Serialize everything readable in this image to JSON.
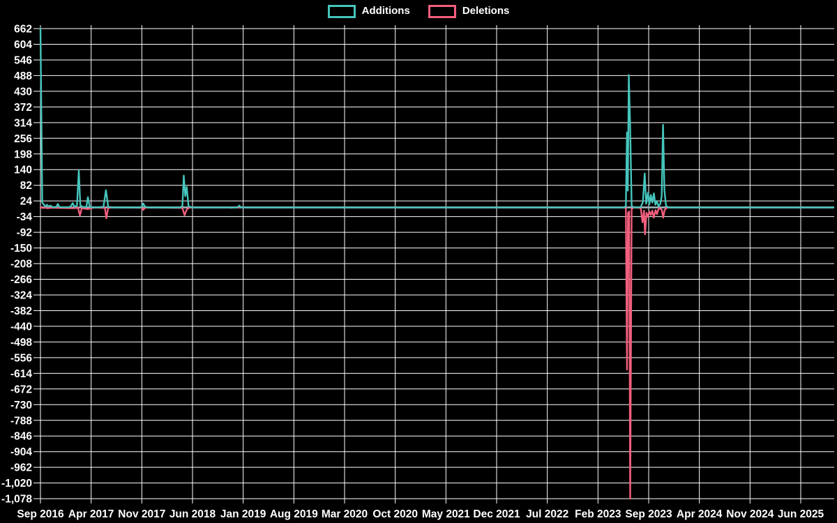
{
  "legend": {
    "items": [
      {
        "label": "Additions",
        "color": "#45c5bc"
      },
      {
        "label": "Deletions",
        "color": "#f25f7d"
      }
    ]
  },
  "chart_data": {
    "type": "line",
    "title": "",
    "xlabel": "",
    "ylabel": "",
    "grid": true,
    "legend_position": "top-center",
    "background_color": "#000000",
    "grid_color": "#ffffff",
    "text_color": "#ffffff",
    "zero_baseline_color": "#9eb6be",
    "y_axis": {
      "min": -1078,
      "max": 662,
      "step": 58,
      "ticks": [
        662,
        604,
        546,
        488,
        430,
        372,
        314,
        256,
        198,
        140,
        82,
        24,
        -34,
        -92,
        -150,
        -208,
        -266,
        -324,
        -382,
        -440,
        -498,
        -556,
        -614,
        -672,
        -730,
        -788,
        -846,
        -904,
        -962,
        "-1,020",
        "-1,078"
      ],
      "tick_values": [
        662,
        604,
        546,
        488,
        430,
        372,
        314,
        256,
        198,
        140,
        82,
        24,
        -34,
        -92,
        -150,
        -208,
        -266,
        -324,
        -382,
        -440,
        -498,
        -556,
        -614,
        -672,
        -730,
        -788,
        -846,
        -904,
        -962,
        -1020,
        -1078
      ]
    },
    "x_axis": {
      "labels": [
        "Sep 2016",
        "Apr 2017",
        "Nov 2017",
        "Jun 2018",
        "Jan 2019",
        "Aug 2019",
        "Mar 2020",
        "Oct 2020",
        "May 2021",
        "Dec 2021",
        "Jul 2022",
        "Feb 2023",
        "Sep 2023",
        "Apr 2024",
        "Nov 2024",
        "Jun 2025"
      ],
      "months_between_labels": 7,
      "x_unit": "months since Sep 2016"
    },
    "series": [
      {
        "name": "Additions",
        "color": "#45c5bc",
        "points": [
          [
            0,
            662
          ],
          [
            0.25,
            18
          ],
          [
            0.7,
            3
          ],
          [
            0.9,
            10
          ],
          [
            1.15,
            3
          ],
          [
            1.4,
            7
          ],
          [
            1.7,
            1
          ],
          [
            2.2,
            2
          ],
          [
            2.4,
            13
          ],
          [
            2.65,
            1
          ],
          [
            4.0,
            1
          ],
          [
            4.2,
            5
          ],
          [
            4.45,
            16
          ],
          [
            4.7,
            2
          ],
          [
            5.05,
            8
          ],
          [
            5.3,
            138
          ],
          [
            5.5,
            8
          ],
          [
            5.75,
            3
          ],
          [
            6.1,
            1
          ],
          [
            6.35,
            3
          ],
          [
            6.55,
            38
          ],
          [
            6.8,
            2
          ],
          [
            7.5,
            0
          ],
          [
            8.7,
            2
          ],
          [
            9.05,
            64
          ],
          [
            9.35,
            2
          ],
          [
            10,
            0
          ],
          [
            13.8,
            0
          ],
          [
            14.0,
            3
          ],
          [
            14.2,
            15
          ],
          [
            14.45,
            2
          ],
          [
            15,
            0
          ],
          [
            19.3,
            0
          ],
          [
            19.6,
            5
          ],
          [
            19.8,
            118
          ],
          [
            20.0,
            42
          ],
          [
            20.2,
            76
          ],
          [
            20.45,
            4
          ],
          [
            21,
            0
          ],
          [
            27.2,
            0
          ],
          [
            27.45,
            7
          ],
          [
            27.7,
            0
          ],
          [
            80.6,
            0
          ],
          [
            80.85,
            5
          ],
          [
            81.0,
            278
          ],
          [
            81.12,
            62
          ],
          [
            81.25,
            490
          ],
          [
            81.45,
            295
          ],
          [
            81.65,
            5
          ],
          [
            82.0,
            0
          ],
          [
            82.9,
            1
          ],
          [
            83.2,
            20
          ],
          [
            83.45,
            126
          ],
          [
            83.65,
            14
          ],
          [
            83.9,
            54
          ],
          [
            84.1,
            12
          ],
          [
            84.3,
            46
          ],
          [
            84.5,
            18
          ],
          [
            84.72,
            52
          ],
          [
            84.92,
            10
          ],
          [
            85.12,
            24
          ],
          [
            85.35,
            5
          ],
          [
            85.6,
            12
          ],
          [
            85.8,
            42
          ],
          [
            85.98,
            306
          ],
          [
            86.18,
            62
          ],
          [
            86.4,
            6
          ],
          [
            86.7,
            0
          ],
          [
            109.5,
            0
          ]
        ]
      },
      {
        "name": "Deletions",
        "color": "#f25f7d",
        "points": [
          [
            0,
            0
          ],
          [
            0.3,
            -2
          ],
          [
            0.7,
            -1
          ],
          [
            1.0,
            -3
          ],
          [
            1.5,
            -1
          ],
          [
            2.4,
            -2
          ],
          [
            4.45,
            -3
          ],
          [
            5.2,
            -2
          ],
          [
            5.45,
            -30
          ],
          [
            5.7,
            -3
          ],
          [
            6.55,
            -6
          ],
          [
            7.5,
            0
          ],
          [
            8.9,
            -2
          ],
          [
            9.1,
            -40
          ],
          [
            9.35,
            -2
          ],
          [
            10,
            0
          ],
          [
            14.0,
            -1
          ],
          [
            14.2,
            -9
          ],
          [
            14.45,
            -1
          ],
          [
            15,
            0
          ],
          [
            19.6,
            -2
          ],
          [
            19.9,
            -29
          ],
          [
            20.2,
            -8
          ],
          [
            20.5,
            -1
          ],
          [
            21,
            0
          ],
          [
            26.2,
            0
          ],
          [
            26.3,
            -2
          ],
          [
            26.45,
            0
          ],
          [
            80.6,
            0
          ],
          [
            80.85,
            -3
          ],
          [
            81.0,
            -600
          ],
          [
            81.15,
            -20
          ],
          [
            81.3,
            -15
          ],
          [
            81.45,
            -1078
          ],
          [
            81.65,
            -5
          ],
          [
            82.0,
            0
          ],
          [
            82.9,
            -2
          ],
          [
            83.15,
            -55
          ],
          [
            83.35,
            -12
          ],
          [
            83.5,
            -100
          ],
          [
            83.7,
            -20
          ],
          [
            83.9,
            -35
          ],
          [
            84.1,
            -15
          ],
          [
            84.3,
            -28
          ],
          [
            84.5,
            -12
          ],
          [
            84.7,
            -38
          ],
          [
            84.95,
            -10
          ],
          [
            85.15,
            -25
          ],
          [
            85.4,
            -3
          ],
          [
            85.8,
            -8
          ],
          [
            86.0,
            -38
          ],
          [
            86.2,
            -10
          ],
          [
            86.45,
            -2
          ],
          [
            86.7,
            0
          ],
          [
            109.5,
            0
          ]
        ]
      }
    ]
  }
}
